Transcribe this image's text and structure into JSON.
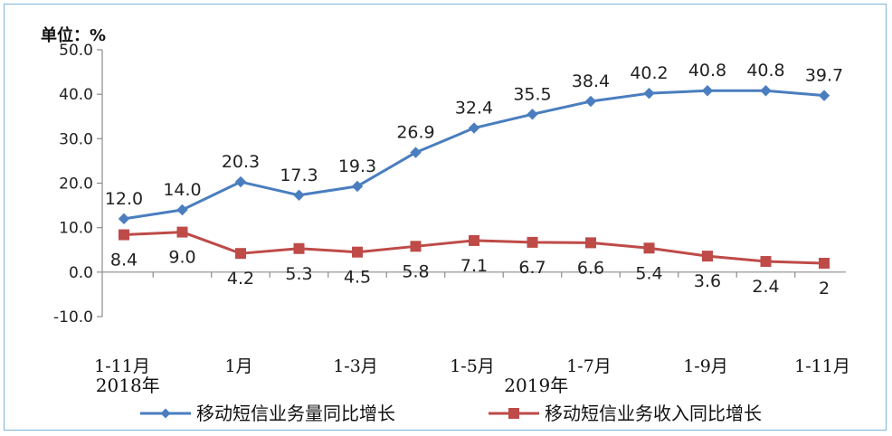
{
  "chart_data": {
    "type": "line",
    "unit_label": "单位：%",
    "categories": [
      "1-11月",
      "",
      "1月",
      "",
      "1-3月",
      "",
      "1-5月",
      "",
      "1-7月",
      "",
      "1-9月",
      "",
      "1-11月"
    ],
    "category_label_indices": [
      0,
      2,
      4,
      6,
      8,
      10,
      12
    ],
    "year_labels": [
      {
        "text": "2018年",
        "index": 0.5
      },
      {
        "text": "2019年",
        "index": 7.5
      }
    ],
    "ylim": [
      -10,
      50
    ],
    "yticks": [
      "-10.0",
      "0.0",
      "10.0",
      "20.0",
      "30.0",
      "40.0",
      "50.0"
    ],
    "ytick_values": [
      -10,
      0,
      10,
      20,
      30,
      40,
      50
    ],
    "grid": false,
    "legend_position": "bottom",
    "series": [
      {
        "name": "移动短信业务量同比增长",
        "color": "#4a7ebf",
        "marker": "diamond",
        "values": [
          12.0,
          14.0,
          20.3,
          17.3,
          19.3,
          26.9,
          32.4,
          35.5,
          38.4,
          40.2,
          40.8,
          40.8,
          39.7
        ],
        "labels": [
          "12.0",
          "14.0",
          "20.3",
          "17.3",
          "19.3",
          "26.9",
          "32.4",
          "35.5",
          "38.4",
          "40.2",
          "40.8",
          "40.8",
          "39.7"
        ],
        "label_position": "above"
      },
      {
        "name": "移动短信业务收入同比增长",
        "color": "#be4b48",
        "marker": "square",
        "values": [
          8.4,
          9.0,
          4.2,
          5.3,
          4.5,
          5.8,
          7.1,
          6.7,
          6.6,
          5.4,
          3.6,
          2.4,
          2
        ],
        "labels": [
          "8.4",
          "9.0",
          "4.2",
          "5.3",
          "4.5",
          "5.8",
          "7.1",
          "6.7",
          "6.6",
          "5.4",
          "3.6",
          "2.4",
          "2"
        ],
        "label_position": "below"
      }
    ]
  }
}
